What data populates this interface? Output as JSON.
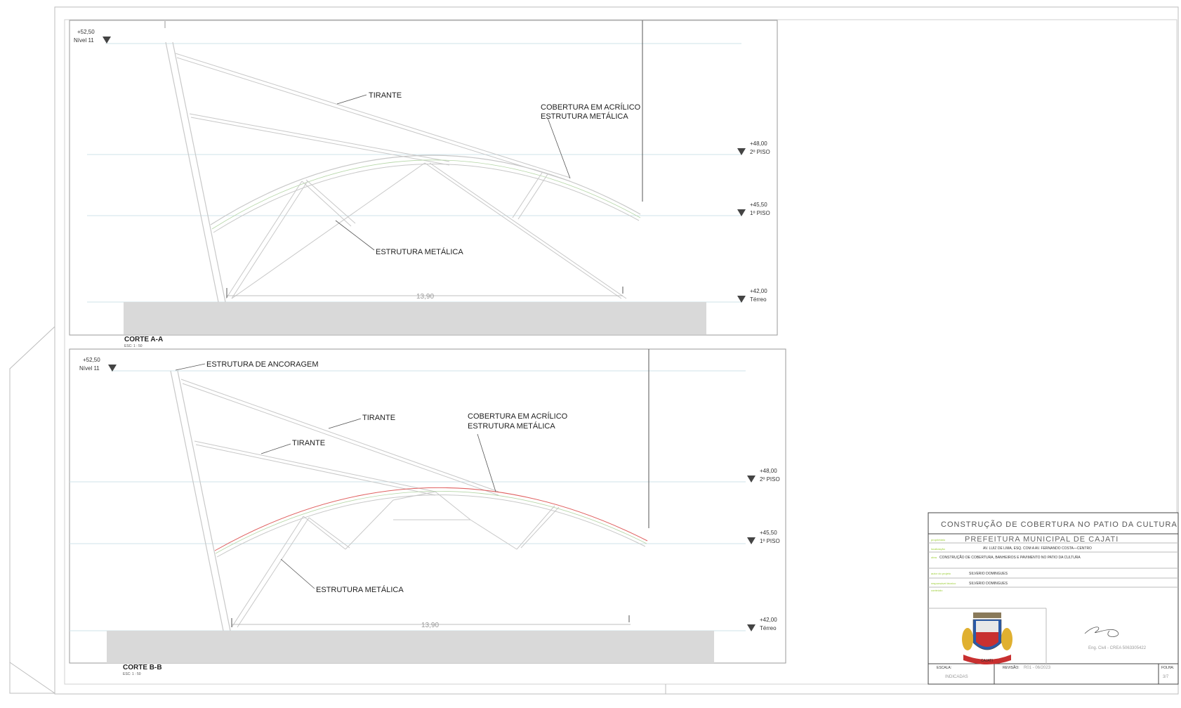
{
  "section_a": {
    "title": "CORTE A-A",
    "scale": "ESC: 1 : 50",
    "dimension": "13,90",
    "levels": [
      {
        "elev": "+52,50",
        "name": "Nível 11"
      },
      {
        "elev": "+48,00",
        "name": "2º PISO"
      },
      {
        "elev": "+45,50",
        "name": "1º PISO"
      },
      {
        "elev": "+42,00",
        "name": "Térreo"
      }
    ],
    "labels": {
      "tirante": "TIRANTE",
      "cobertura_1": "COBERTURA EM ACRÍLICO",
      "cobertura_2": "ESTRUTURA METÁLICA",
      "estrutura": "ESTRUTURA METÁLICA"
    }
  },
  "section_b": {
    "title": "CORTE B-B",
    "scale": "ESC: 1 : 50",
    "dimension": "13,90",
    "levels": [
      {
        "elev": "+52,50",
        "name": "Nível 11"
      },
      {
        "elev": "+48,00",
        "name": "2º PISO"
      },
      {
        "elev": "+45,50",
        "name": "1º PISO"
      },
      {
        "elev": "+42,00",
        "name": "Térreo"
      }
    ],
    "labels": {
      "ancoragem": "ESTRUTURA DE ANCORAGEM",
      "tirante_1": "TIRANTE",
      "tirante_2": "TIRANTE",
      "cobertura_1": "COBERTURA EM ACRÍLICO",
      "cobertura_2": "ESTRUTURA METÁLICA",
      "estrutura": "ESTRUTURA METÁLICA"
    }
  },
  "title_block": {
    "heading": "CONSTRUÇÃO DE COBERTURA NO PATIO DA CULTURA",
    "client_key": "proprietário",
    "client": "PREFEITURA MUNICIPAL DE CAJATI",
    "address_key": "localização",
    "address": "AV. LUIZ DE LIMA, ESQ. COM A AV. FERNANDO COSTA—CENTRO",
    "desc_key": "obra",
    "description": "CONSTRUÇÃO DE COBERTURA, BANHEIROS E PAVIMENTO NO PATIO DA CULTURA",
    "author_key": "autor do projeto",
    "author": "SILVERIO DOMINGUES",
    "resp_key": "responsável técnico",
    "responsible": "SILVERIO DOMINGUES",
    "notes_key": "conteúdo",
    "signature_text": "Eng. Civil - CREA 5063305422",
    "scale_key": "ESCALA:",
    "scale": "INDICADAS",
    "revision_key": "REVISÃO:",
    "revision": "R01 - 06/2023",
    "sheet_key": "FOLHA:",
    "sheet": "3/7",
    "seal_text": "CAJATI"
  },
  "colors": {
    "line": "#c8c8c8",
    "level_line": "#cfe3ea",
    "ground": "#d9d9d9",
    "acrylic": "#e06060",
    "accent": "#9acd32"
  }
}
